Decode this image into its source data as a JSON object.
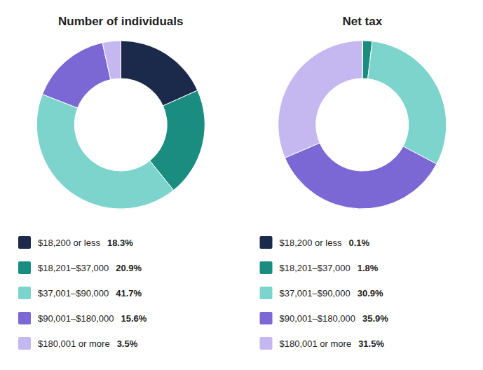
{
  "chart_data": [
    {
      "type": "donut",
      "title": "Number of individuals",
      "categories": [
        "$18,200 or less",
        "$18,201–$37,000",
        "$37,001–$90,000",
        "$90,001–$180,000",
        "$180,001 or more"
      ],
      "values": [
        18.3,
        20.9,
        41.7,
        15.6,
        3.5
      ],
      "value_labels": [
        "18.3%",
        "20.9%",
        "41.7%",
        "15.6%",
        "3.5%"
      ],
      "colors": [
        "#1b2a4a",
        "#1a8c80",
        "#7dd4cc",
        "#7b68d4",
        "#c5b8f0"
      ],
      "legend": "bottom"
    },
    {
      "type": "donut",
      "title": "Net tax",
      "categories": [
        "$18,200 or less",
        "$18,201–$37,000",
        "$37,001–$90,000",
        "$90,001–$180,000",
        "$180,001 or more"
      ],
      "values": [
        0.1,
        1.8,
        30.9,
        35.9,
        31.5
      ],
      "value_labels": [
        "0.1%",
        "1.8%",
        "30.9%",
        "35.9%",
        "31.5%"
      ],
      "colors": [
        "#1b2a4a",
        "#1a8c80",
        "#7dd4cc",
        "#7b68d4",
        "#c5b8f0"
      ],
      "legend": "bottom"
    }
  ]
}
